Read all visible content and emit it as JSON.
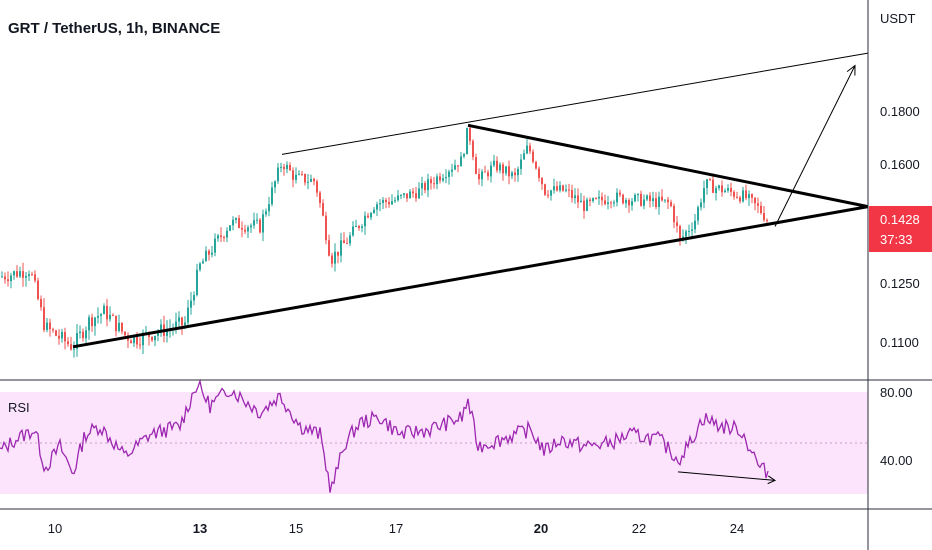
{
  "header": {
    "title": "GRT / TetherUS, 1h, BINANCE"
  },
  "price_axis": {
    "unit": "USDT",
    "ticks": [
      "0.1800",
      "0.1600",
      "0.1250",
      "0.1100"
    ]
  },
  "last_price": {
    "value": "0.1428",
    "countdown": "37:33",
    "color": "#f23645"
  },
  "rsi": {
    "label": "RSI",
    "ticks": [
      "80.00",
      "40.00"
    ],
    "color": "#9c27b0",
    "band_color": "#fce4fc"
  },
  "time_axis": {
    "ticks": [
      "10",
      "13",
      "15",
      "17",
      "20",
      "22",
      "24"
    ],
    "bold_ticks": [
      "13",
      "20"
    ]
  },
  "colors": {
    "up": "#26a69a",
    "up_alt": "#4caf50",
    "down": "#ef5350",
    "trendline": "#000000"
  },
  "chart_data": [
    {
      "type": "candlestick",
      "title": "GRT / TetherUS, 1h, BINANCE",
      "ylabel": "USDT",
      "x_ticks": [
        "10",
        "13",
        "15",
        "17",
        "20",
        "22",
        "24"
      ],
      "y_ticks": [
        0.18,
        0.16,
        0.125,
        0.11
      ],
      "close_path": [
        [
          0,
          0.127
        ],
        [
          30,
          0.129
        ],
        [
          45,
          0.114
        ],
        [
          73,
          0.109
        ],
        [
          90,
          0.116
        ],
        [
          105,
          0.118
        ],
        [
          125,
          0.112
        ],
        [
          135,
          0.111
        ],
        [
          160,
          0.113
        ],
        [
          185,
          0.115
        ],
        [
          200,
          0.13
        ],
        [
          215,
          0.136
        ],
        [
          230,
          0.142
        ],
        [
          260,
          0.141
        ],
        [
          270,
          0.15
        ],
        [
          282,
          0.161
        ],
        [
          295,
          0.156
        ],
        [
          315,
          0.155
        ],
        [
          331,
          0.132
        ],
        [
          350,
          0.138
        ],
        [
          375,
          0.148
        ],
        [
          395,
          0.149
        ],
        [
          420,
          0.152
        ],
        [
          445,
          0.158
        ],
        [
          462,
          0.162
        ],
        [
          468,
          0.174
        ],
        [
          478,
          0.155
        ],
        [
          495,
          0.16
        ],
        [
          515,
          0.156
        ],
        [
          528,
          0.167
        ],
        [
          545,
          0.152
        ],
        [
          565,
          0.152
        ],
        [
          585,
          0.147
        ],
        [
          610,
          0.15
        ],
        [
          640,
          0.149
        ],
        [
          670,
          0.148
        ],
        [
          680,
          0.137
        ],
        [
          695,
          0.143
        ],
        [
          705,
          0.154
        ],
        [
          725,
          0.152
        ],
        [
          745,
          0.15
        ],
        [
          760,
          0.146
        ],
        [
          768,
          0.1428
        ]
      ],
      "trendlines": [
        {
          "kind": "support",
          "points": [
            [
              73,
              0.109
            ],
            [
              868,
              0.147
            ]
          ]
        },
        {
          "kind": "resistance",
          "points": [
            [
              468,
              0.175
            ],
            [
              868,
              0.147
            ]
          ]
        },
        {
          "kind": "channel-top",
          "points": [
            [
              282,
              0.164
            ],
            [
              868,
              0.199
            ]
          ]
        },
        {
          "kind": "projection-arrow",
          "points": [
            [
              775,
              0.141
            ],
            [
              855,
              0.195
            ]
          ]
        }
      ]
    },
    {
      "type": "line",
      "title": "RSI",
      "y_ticks": [
        80,
        40
      ],
      "band": [
        20,
        80
      ],
      "midline": 50,
      "points": [
        [
          0,
          45
        ],
        [
          15,
          52
        ],
        [
          35,
          58
        ],
        [
          45,
          35
        ],
        [
          60,
          48
        ],
        [
          73,
          32
        ],
        [
          85,
          55
        ],
        [
          100,
          60
        ],
        [
          125,
          42
        ],
        [
          150,
          55
        ],
        [
          180,
          60
        ],
        [
          197,
          85
        ],
        [
          210,
          72
        ],
        [
          230,
          82
        ],
        [
          260,
          68
        ],
        [
          280,
          78
        ],
        [
          300,
          60
        ],
        [
          320,
          55
        ],
        [
          331,
          22
        ],
        [
          345,
          50
        ],
        [
          360,
          62
        ],
        [
          380,
          65
        ],
        [
          400,
          55
        ],
        [
          430,
          58
        ],
        [
          462,
          65
        ],
        [
          468,
          75
        ],
        [
          478,
          48
        ],
        [
          500,
          52
        ],
        [
          530,
          58
        ],
        [
          545,
          45
        ],
        [
          560,
          52
        ],
        [
          585,
          48
        ],
        [
          610,
          50
        ],
        [
          630,
          55
        ],
        [
          660,
          52
        ],
        [
          678,
          40
        ],
        [
          690,
          50
        ],
        [
          703,
          65
        ],
        [
          720,
          60
        ],
        [
          740,
          58
        ],
        [
          752,
          45
        ],
        [
          760,
          35
        ],
        [
          768,
          33
        ]
      ],
      "divergence_arrow": [
        [
          678,
          33
        ],
        [
          775,
          28
        ]
      ]
    }
  ]
}
